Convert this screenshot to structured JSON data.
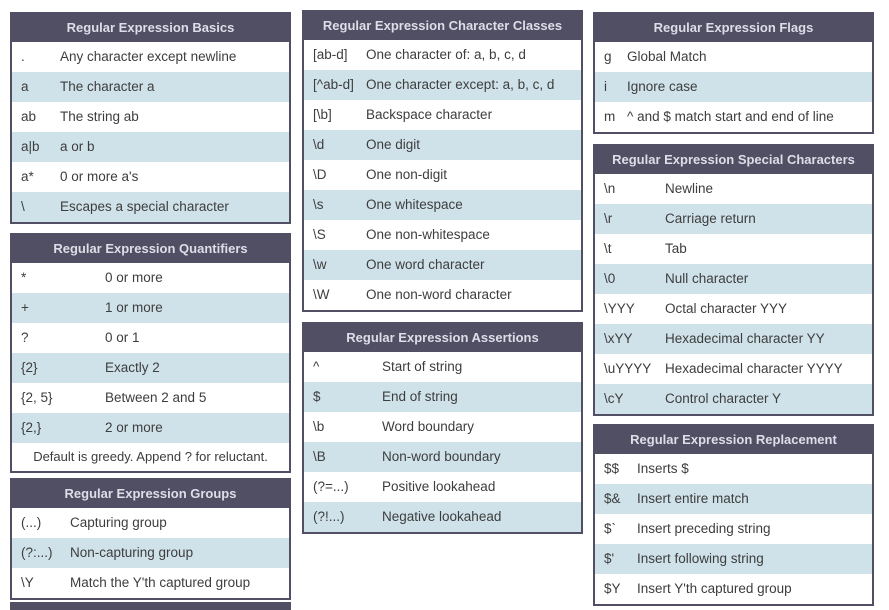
{
  "colors": {
    "header_bg": "#514f64",
    "header_text": "#dedee8",
    "alt_row_bg": "#cfe2ea",
    "row_bg": "#ffffff",
    "text": "#3d3d3d"
  },
  "columns": [
    {
      "tables": [
        {
          "name": "regex-basics-table",
          "title": "Regular Expression Basics",
          "rows": [
            [
              ".",
              "Any character except newline"
            ],
            [
              "a",
              "The character a"
            ],
            [
              "ab",
              "The string ab"
            ],
            [
              "a|b",
              "a or b"
            ],
            [
              "a*",
              "0 or more a's"
            ],
            [
              "\\",
              "Escapes a special character"
            ]
          ]
        },
        {
          "name": "regex-quantifiers-table",
          "title": "Regular Expression Quantifiers",
          "rows": [
            [
              "*",
              "0 or more"
            ],
            [
              "+",
              "1 or more"
            ],
            [
              "?",
              "0 or 1"
            ],
            [
              "{2}",
              "Exactly 2"
            ],
            [
              "{2, 5}",
              "Between 2 and 5"
            ],
            [
              "{2,}",
              "2 or more"
            ]
          ],
          "footnote": "Default is greedy. Append ? for reluctant."
        },
        {
          "name": "regex-groups-table",
          "title": "Regular Expression Groups",
          "rows": [
            [
              "(...)",
              "Capturing group"
            ],
            [
              "(?:...)",
              "Non-capturing group"
            ],
            [
              "\\Y",
              "Match the Y'th captured group"
            ]
          ]
        },
        {
          "name": "partial-table-header",
          "title": "",
          "partial": true,
          "rows": []
        }
      ]
    },
    {
      "tables": [
        {
          "name": "regex-character-classes-table",
          "title": "Regular Expression Character Classes",
          "rows": [
            [
              "[ab-d]",
              "One character of: a, b, c, d"
            ],
            [
              "[^ab-d]",
              "One character except: a, b, c, d"
            ],
            [
              "[\\b]",
              "Backspace character"
            ],
            [
              "\\d",
              "One digit"
            ],
            [
              "\\D",
              "One non-digit"
            ],
            [
              "\\s",
              "One whitespace"
            ],
            [
              "\\S",
              "One non-whitespace"
            ],
            [
              "\\w",
              "One word character"
            ],
            [
              "\\W",
              "One non-word character"
            ]
          ]
        },
        {
          "name": "regex-assertions-table",
          "title": "Regular Expression Assertions",
          "rows": [
            [
              "^",
              "Start of string"
            ],
            [
              "$",
              "End of string"
            ],
            [
              "\\b",
              "Word boundary"
            ],
            [
              "\\B",
              "Non-word boundary"
            ],
            [
              "(?=...)",
              "Positive lookahead"
            ],
            [
              "(?!...)",
              "Negative lookahead"
            ]
          ]
        }
      ]
    },
    {
      "tables": [
        {
          "name": "regex-flags-table",
          "title": "Regular Expression Flags",
          "rows": [
            [
              "g",
              "Global Match"
            ],
            [
              "i",
              "Ignore case"
            ],
            [
              "m",
              "^ and $ match start and end of line"
            ]
          ]
        },
        {
          "name": "regex-special-characters-table",
          "title": "Regular Expression Special Characters",
          "rows": [
            [
              "\\n",
              "Newline"
            ],
            [
              "\\r",
              "Carriage return"
            ],
            [
              "\\t",
              "Tab"
            ],
            [
              "\\0",
              "Null character"
            ],
            [
              "\\YYY",
              "Octal character YYY"
            ],
            [
              "\\xYY",
              "Hexadecimal character YY"
            ],
            [
              "\\uYYYY",
              "Hexadecimal character YYYY"
            ],
            [
              "\\cY",
              "Control character Y"
            ]
          ]
        },
        {
          "name": "regex-replacement-table",
          "title": "Regular Expression Replacement",
          "rows": [
            [
              "$$",
              "Inserts $"
            ],
            [
              "$&",
              "Insert entire match"
            ],
            [
              "$`",
              "Insert preceding string"
            ],
            [
              "$'",
              "Insert following string"
            ],
            [
              "$Y",
              "Insert Y'th captured group"
            ]
          ]
        }
      ]
    }
  ]
}
